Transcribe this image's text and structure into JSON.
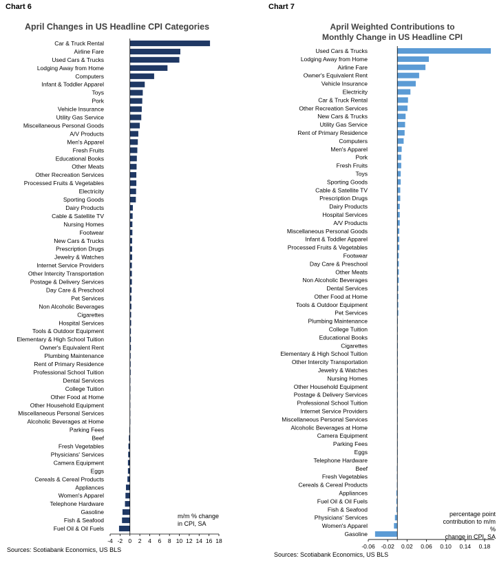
{
  "left": {
    "label": "Chart 6",
    "title": "April Changes in US Headline CPI Categories",
    "note_line1": "m/m % change",
    "note_line2": "in CPI, SA",
    "source": "Sources: Scotiabank Economics, US BLS",
    "color": "#1f3864"
  },
  "right": {
    "label": "Chart 7",
    "title_line1": "April Weighted Contributions to",
    "title_line2": "Monthly Change in US Headline CPI",
    "note_line1": "percentage point",
    "note_line2": "contribution to m/m %",
    "note_line3": "change in CPI, SA",
    "source": "Sources: Scotiabank Economics, US BLS",
    "color": "#5b9bd5"
  },
  "chart_data": [
    {
      "type": "bar",
      "orientation": "horizontal",
      "title": "April Changes in US Headline CPI Categories",
      "ylabel": "m/m % change in CPI, SA",
      "xlim": [
        -4,
        18
      ],
      "xticks": [
        -4,
        -2,
        0,
        2,
        4,
        6,
        8,
        10,
        12,
        14,
        16,
        18
      ],
      "categories": [
        "Car & Truck Rental",
        "Airline Fare",
        "Used Cars & Trucks",
        "Lodging Away from Home",
        "Computers",
        "Infant & Toddler Apparel",
        "Toys",
        "Pork",
        "Vehicle Insurance",
        "Utility Gas Service",
        "Miscellaneous Personal Goods",
        "A/V Products",
        "Men's Apparel",
        "Fresh Fruits",
        "Educational Books",
        "Other Meats",
        "Other Recreation Services",
        "Processed Fruits & Vegetables",
        "Electricity",
        "Sporting Goods",
        "Dairy Products",
        "Cable & Satellite TV",
        "Nursing Homes",
        "Footwear",
        "New Cars & Trucks",
        "Prescription Drugs",
        "Jewelry & Watches",
        "Internet Service Providers",
        "Other Intercity Transportation",
        "Postage & Delivery Services",
        "Day Care & Preschool",
        "Pet Services",
        "Non Alcoholic Beverages",
        "Cigarettes",
        "Hospital Services",
        "Tools & Outdoor Equipment",
        "Elementary & High School Tuition",
        "Owner's Equivalent Rent",
        "Plumbing Maintenance",
        "Rent of Primary Residence",
        "Professional School Tuition",
        "Dental Services",
        "College Tuition",
        "Other Food at Home",
        "Other Household Equipment",
        "Miscellaneous Personal Services",
        "Alcoholic Beverages at Home",
        "Parking Fees",
        "Beef",
        "Fresh Vegetables",
        "Physicians' Services",
        "Camera Equipment",
        "Eggs",
        "Cereals & Cereal Products",
        "Appliances",
        "Women's Apparel",
        "Telephone Hardware",
        "Gasoline",
        "Fish & Seafood",
        "Fuel Oil & Oil Fuels"
      ],
      "values": [
        16.2,
        10.2,
        10.0,
        7.6,
        4.9,
        3.0,
        2.6,
        2.5,
        2.4,
        2.3,
        2.0,
        1.7,
        1.6,
        1.5,
        1.4,
        1.35,
        1.3,
        1.3,
        1.25,
        1.2,
        0.6,
        0.55,
        0.5,
        0.5,
        0.45,
        0.45,
        0.45,
        0.4,
        0.4,
        0.4,
        0.35,
        0.3,
        0.3,
        0.25,
        0.25,
        0.2,
        0.2,
        0.2,
        0.15,
        0.15,
        0.15,
        0.1,
        0.1,
        0.05,
        0.0,
        0.0,
        0.0,
        -0.1,
        -0.2,
        -0.3,
        -0.35,
        -0.4,
        -0.4,
        -0.5,
        -0.8,
        -0.9,
        -1.0,
        -1.5,
        -1.6,
        -2.2
      ]
    },
    {
      "type": "bar",
      "orientation": "horizontal",
      "title": "April Weighted Contributions to Monthly Change in US Headline CPI",
      "ylabel": "percentage point contribution to m/m % change in CPI, SA",
      "xlim": [
        -0.06,
        0.2
      ],
      "xticks": [
        -0.06,
        -0.02,
        0.02,
        0.06,
        0.1,
        0.14,
        0.18
      ],
      "xticklabels": [
        "-0.06",
        "-0.02",
        "0.02",
        "0.06",
        "0.10",
        "0.14",
        "0.18"
      ],
      "categories": [
        "Used Cars & Trucks",
        "Lodging Away from Home",
        "Airline Fare",
        "Owner's Equivalent Rent",
        "Vehicle Insurance",
        "Electricity",
        "Car & Truck Rental",
        "Other Recreation Services",
        "New Cars & Trucks",
        "Utility Gas Service",
        "Rent of Primary Residence",
        "Computers",
        "Men's Apparel",
        "Pork",
        "Fresh Fruits",
        "Toys",
        "Sporting Goods",
        "Cable & Satellite TV",
        "Prescription Drugs",
        "Dairy Products",
        "Hospital Services",
        "A/V Products",
        "Miscellaneous Personal Goods",
        "Infant & Toddler Apparel",
        "Processed Fruits & Vegetables",
        "Footwear",
        "Day Care & Preschool",
        "Other Meats",
        "Non Alcoholic Beverages",
        "Dental Services",
        "Other Food at Home",
        "Tools & Outdoor Equipment",
        "Pet Services",
        "Plumbing Maintenance",
        "College Tuition",
        "Educational Books",
        "Cigarettes",
        "Elementary & High School Tuition",
        "Other Intercity Transportation",
        "Jewelry & Watches",
        "Nursing Homes",
        "Other Household Equipment",
        "Postage & Delivery Services",
        "Professional School Tuition",
        "Internet Service Providers",
        "Miscellaneous Personal Services",
        "Alcoholic Beverages at Home",
        "Camera Equipment",
        "Parking Fees",
        "Eggs",
        "Telephone Hardware",
        "Beef",
        "Fresh Vegetables",
        "Cereals & Cereal Products",
        "Appliances",
        "Fuel Oil & Oil Fuels",
        "Fish & Seafood",
        "Physicians' Services",
        "Women's Apparel",
        "Gasoline"
      ],
      "values": [
        0.193,
        0.065,
        0.058,
        0.045,
        0.038,
        0.027,
        0.022,
        0.021,
        0.017,
        0.016,
        0.015,
        0.013,
        0.009,
        0.008,
        0.008,
        0.007,
        0.007,
        0.006,
        0.006,
        0.005,
        0.005,
        0.005,
        0.004,
        0.004,
        0.004,
        0.003,
        0.003,
        0.003,
        0.003,
        0.002,
        0.002,
        0.002,
        0.002,
        0.001,
        0.001,
        0.001,
        0.001,
        0.001,
        0.001,
        0.001,
        0.001,
        0.0,
        0.0,
        0.0,
        0.0,
        0.0,
        0.0,
        0.0,
        0.0,
        0.0,
        0.0,
        -0.001,
        -0.001,
        -0.001,
        -0.002,
        -0.002,
        -0.002,
        -0.005,
        -0.007,
        -0.046
      ]
    }
  ]
}
